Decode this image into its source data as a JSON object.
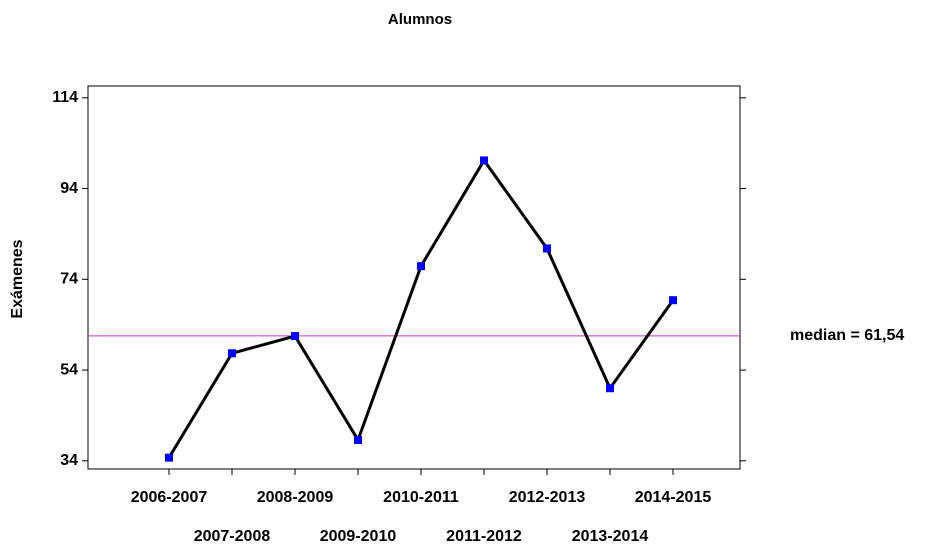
{
  "chart_data": {
    "type": "line",
    "title": "Alumnos",
    "y_label": "Exámenes",
    "categories": [
      "2006-2007",
      "2007-2008",
      "2008-2009",
      "2009-2010",
      "2010-2011",
      "2011-2012",
      "2012-2013",
      "2013-2014",
      "2014-2015"
    ],
    "series": [
      {
        "name": "Alumnos",
        "color": "#000000",
        "marker_color": "#0000ff",
        "values": [
          34.7,
          57.7,
          61.5,
          38.6,
          76.9,
          100.2,
          80.8,
          50.0,
          69.4
        ]
      }
    ],
    "median": {
      "value": 61.54,
      "label": "median = 61,54",
      "color": "#cc33cc"
    },
    "ylim": [
      32.2,
      116.6
    ],
    "yticks": [
      34,
      54,
      74,
      94,
      114
    ]
  }
}
